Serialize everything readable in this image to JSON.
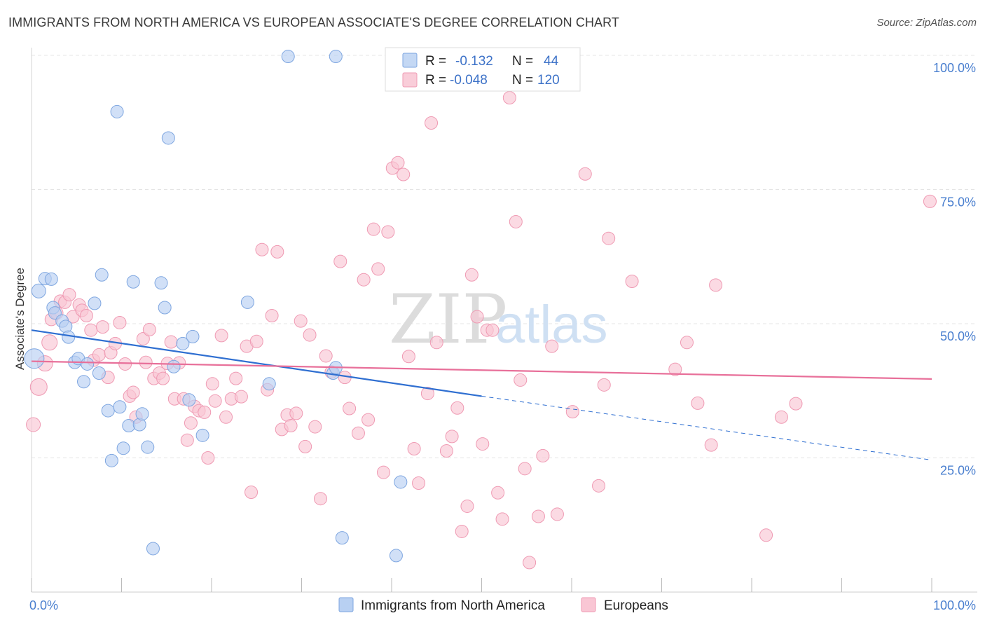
{
  "title": "IMMIGRANTS FROM NORTH AMERICA VS EUROPEAN ASSOCIATE'S DEGREE CORRELATION CHART",
  "source": "Source: ZipAtlas.com",
  "watermark": {
    "zip": "ZIP",
    "atlas": "atlas"
  },
  "legend_box": {
    "rows": [
      {
        "r_label": "R =",
        "r_value": "-0.132",
        "n_label": "N =",
        "n_value": "44",
        "color": "#a9c4ec"
      },
      {
        "r_label": "R =",
        "r_value": "-0.048",
        "n_label": "N =",
        "n_value": "120",
        "color": "#f5b7c9"
      }
    ]
  },
  "bottom_legend": [
    {
      "label": "Immigrants from North America",
      "color": "#b8d0f2"
    },
    {
      "label": "Europeans",
      "color": "#f9c6d4"
    }
  ],
  "chart_data": {
    "type": "scatter",
    "xlabel": "",
    "ylabel": "Associate's Degree",
    "xlim": [
      0,
      100
    ],
    "ylim": [
      0,
      100
    ],
    "x_tick_labels": [
      {
        "value": 0,
        "label": "0.0%"
      },
      {
        "value": 100,
        "label": "100.0%"
      }
    ],
    "y_tick_labels": [
      {
        "value": 25,
        "label": "25.0%"
      },
      {
        "value": 50,
        "label": "50.0%"
      },
      {
        "value": 75,
        "label": "75.0%"
      },
      {
        "value": 100,
        "label": "100.0%"
      }
    ],
    "grid": true,
    "colors": {
      "blue_fill": "#b8d0f2",
      "blue_stroke": "#7ea6e0",
      "blue_line": "#2f6fd1",
      "pink_fill": "#f9c6d4",
      "pink_stroke": "#ef9ab3",
      "pink_line": "#e8709a"
    },
    "series": [
      {
        "name": "Immigrants from North America",
        "trend": {
          "x0": 0,
          "y0": 48.8,
          "x1": 50,
          "y1": 36.5,
          "dash_to_x": 100,
          "dash_to_y": 24.6
        },
        "points": [
          [
            0.3,
            43.5,
            14
          ],
          [
            0.8,
            56.1,
            10
          ],
          [
            1.5,
            58.4,
            9
          ],
          [
            2.2,
            58.3,
            9
          ],
          [
            2.4,
            53.0,
            9
          ],
          [
            2.6,
            52.0,
            9
          ],
          [
            3.4,
            50.5,
            9
          ],
          [
            3.8,
            49.5,
            9
          ],
          [
            4.1,
            47.5,
            9
          ],
          [
            4.8,
            42.8,
            9
          ],
          [
            5.2,
            43.5,
            9
          ],
          [
            5.8,
            39.2,
            9
          ],
          [
            6.2,
            42.5,
            9
          ],
          [
            7.0,
            53.8,
            9
          ],
          [
            7.5,
            40.8,
            9
          ],
          [
            7.8,
            59.1,
            9
          ],
          [
            8.5,
            33.8,
            9
          ],
          [
            8.9,
            24.5,
            9
          ],
          [
            9.5,
            89.5,
            9
          ],
          [
            9.8,
            34.5,
            9
          ],
          [
            10.2,
            26.8,
            9
          ],
          [
            10.8,
            31.0,
            9
          ],
          [
            11.3,
            57.8,
            9
          ],
          [
            12.0,
            31.2,
            9
          ],
          [
            12.3,
            33.2,
            9
          ],
          [
            12.9,
            27.0,
            9
          ],
          [
            13.5,
            8.1,
            9
          ],
          [
            14.4,
            57.6,
            9
          ],
          [
            14.8,
            53.0,
            9
          ],
          [
            15.2,
            84.6,
            9
          ],
          [
            15.8,
            42.0,
            9
          ],
          [
            16.8,
            46.3,
            9
          ],
          [
            17.5,
            35.8,
            9
          ],
          [
            17.9,
            47.6,
            9
          ],
          [
            19.0,
            29.2,
            9
          ],
          [
            24.0,
            54.0,
            9
          ],
          [
            26.4,
            38.8,
            9
          ],
          [
            28.5,
            99.8,
            9
          ],
          [
            33.5,
            40.8,
            9
          ],
          [
            33.8,
            41.8,
            9
          ],
          [
            33.8,
            99.8,
            9
          ],
          [
            34.5,
            10.1,
            9
          ],
          [
            40.5,
            6.8,
            9
          ],
          [
            41.0,
            20.5,
            9
          ]
        ]
      },
      {
        "name": "Europeans",
        "trend": {
          "x0": 0,
          "y0": 43.0,
          "x1": 100,
          "y1": 39.7
        },
        "points": [
          [
            0.2,
            31.2,
            10
          ],
          [
            0.8,
            38.2,
            12
          ],
          [
            1.5,
            42.6,
            11
          ],
          [
            2.0,
            46.5,
            11
          ],
          [
            2.2,
            50.8,
            9
          ],
          [
            2.8,
            52.0,
            9
          ],
          [
            3.2,
            54.2,
            9
          ],
          [
            3.7,
            54.0,
            9
          ],
          [
            4.2,
            55.4,
            9
          ],
          [
            4.6,
            51.3,
            9
          ],
          [
            5.3,
            53.5,
            9
          ],
          [
            5.6,
            52.5,
            9
          ],
          [
            6.1,
            51.5,
            9
          ],
          [
            6.6,
            48.8,
            9
          ],
          [
            6.9,
            43.2,
            9
          ],
          [
            7.5,
            44.2,
            9
          ],
          [
            7.9,
            49.4,
            9
          ],
          [
            8.5,
            40.0,
            9
          ],
          [
            8.8,
            44.6,
            9
          ],
          [
            9.3,
            46.3,
            9
          ],
          [
            9.8,
            50.2,
            9
          ],
          [
            10.4,
            42.5,
            9
          ],
          [
            10.9,
            36.5,
            9
          ],
          [
            11.3,
            37.2,
            9
          ],
          [
            11.6,
            32.6,
            9
          ],
          [
            12.4,
            47.2,
            9
          ],
          [
            12.7,
            42.8,
            9
          ],
          [
            13.1,
            48.9,
            9
          ],
          [
            13.6,
            39.8,
            9
          ],
          [
            14.2,
            40.8,
            9
          ],
          [
            14.6,
            39.8,
            9
          ],
          [
            15.1,
            42.6,
            9
          ],
          [
            15.5,
            46.6,
            9
          ],
          [
            15.9,
            36.0,
            9
          ],
          [
            16.4,
            42.7,
            9
          ],
          [
            16.9,
            36.0,
            9
          ],
          [
            17.3,
            28.3,
            9
          ],
          [
            17.7,
            31.5,
            9
          ],
          [
            18.1,
            34.6,
            9
          ],
          [
            18.6,
            33.8,
            9
          ],
          [
            19.2,
            33.5,
            9
          ],
          [
            19.6,
            25.0,
            9
          ],
          [
            20.1,
            38.8,
            9
          ],
          [
            20.4,
            35.6,
            9
          ],
          [
            21.1,
            47.8,
            9
          ],
          [
            21.6,
            32.6,
            9
          ],
          [
            22.2,
            36.0,
            9
          ],
          [
            22.7,
            39.8,
            9
          ],
          [
            23.3,
            36.4,
            9
          ],
          [
            23.9,
            45.8,
            9
          ],
          [
            24.4,
            18.6,
            9
          ],
          [
            25.0,
            46.7,
            9
          ],
          [
            25.6,
            63.8,
            9
          ],
          [
            26.2,
            37.7,
            9
          ],
          [
            26.7,
            51.5,
            9
          ],
          [
            27.3,
            63.4,
            9
          ],
          [
            27.8,
            30.3,
            9
          ],
          [
            28.4,
            33.0,
            9
          ],
          [
            28.8,
            31.0,
            9
          ],
          [
            29.4,
            33.3,
            9
          ],
          [
            29.9,
            50.5,
            9
          ],
          [
            30.4,
            27.1,
            9
          ],
          [
            30.9,
            47.9,
            9
          ],
          [
            31.5,
            30.8,
            9
          ],
          [
            32.1,
            17.4,
            9
          ],
          [
            32.7,
            44.0,
            9
          ],
          [
            33.3,
            41.0,
            9
          ],
          [
            34.3,
            61.6,
            9
          ],
          [
            34.8,
            40.0,
            9
          ],
          [
            35.3,
            34.2,
            9
          ],
          [
            36.3,
            29.6,
            9
          ],
          [
            36.9,
            58.2,
            9
          ],
          [
            37.4,
            32.1,
            9
          ],
          [
            38.0,
            67.6,
            9
          ],
          [
            38.5,
            60.2,
            9
          ],
          [
            39.1,
            22.3,
            9
          ],
          [
            39.6,
            67.1,
            9
          ],
          [
            40.1,
            79.0,
            9
          ],
          [
            40.7,
            80.0,
            9
          ],
          [
            41.3,
            77.8,
            9
          ],
          [
            41.9,
            43.9,
            9
          ],
          [
            42.5,
            26.7,
            9
          ],
          [
            43.0,
            20.3,
            9
          ],
          [
            44.0,
            37.0,
            9
          ],
          [
            44.4,
            87.4,
            9
          ],
          [
            45.0,
            46.5,
            9
          ],
          [
            46.1,
            26.3,
            9
          ],
          [
            46.7,
            29.0,
            9
          ],
          [
            47.3,
            34.3,
            9
          ],
          [
            47.8,
            11.3,
            9
          ],
          [
            48.4,
            16.0,
            9
          ],
          [
            48.9,
            59.1,
            9
          ],
          [
            49.5,
            51.3,
            9
          ],
          [
            50.1,
            27.6,
            9
          ],
          [
            50.6,
            48.8,
            9
          ],
          [
            51.2,
            48.8,
            9
          ],
          [
            51.8,
            18.5,
            9
          ],
          [
            52.3,
            13.6,
            9
          ],
          [
            53.1,
            92.1,
            9
          ],
          [
            53.8,
            69.0,
            9
          ],
          [
            54.3,
            39.5,
            9
          ],
          [
            54.8,
            23.0,
            9
          ],
          [
            55.3,
            5.5,
            9
          ],
          [
            56.3,
            14.1,
            9
          ],
          [
            56.8,
            25.4,
            9
          ],
          [
            57.8,
            45.8,
            9
          ],
          [
            58.4,
            14.5,
            9
          ],
          [
            60.1,
            33.6,
            9
          ],
          [
            61.5,
            77.9,
            9
          ],
          [
            63.0,
            19.8,
            9
          ],
          [
            63.6,
            38.6,
            9
          ],
          [
            64.1,
            65.9,
            9
          ],
          [
            66.7,
            57.9,
            9
          ],
          [
            71.5,
            41.5,
            9
          ],
          [
            72.8,
            46.5,
            9
          ],
          [
            74.0,
            35.2,
            9
          ],
          [
            75.5,
            27.4,
            9
          ],
          [
            76.0,
            57.2,
            9
          ],
          [
            81.6,
            10.6,
            9
          ],
          [
            83.3,
            32.6,
            9
          ],
          [
            84.9,
            35.1,
            9
          ],
          [
            99.8,
            72.8,
            9
          ]
        ]
      }
    ]
  }
}
